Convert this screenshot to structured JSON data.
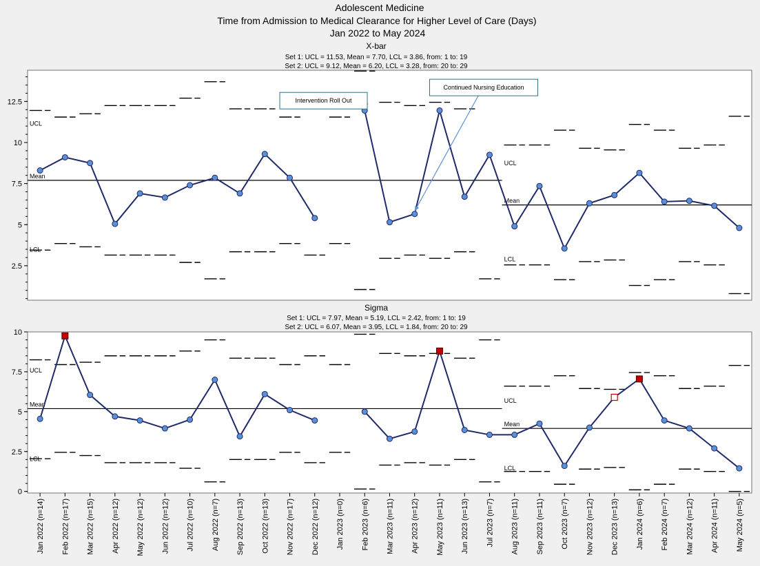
{
  "header": {
    "line1": "Adolescent Medicine",
    "line2": "Time from Admission to Medical Clearance for Higher Level of Care (Days)",
    "line3": "Jan 2022 to May 2024"
  },
  "colors": {
    "line": "#1f2a6b",
    "point": "#5b8fd6",
    "signal": "#c00000",
    "plot_bg": "#ffffff",
    "page_bg": "#f0f0f0",
    "annotation_border": "#2e6f86"
  },
  "chart_data": [
    {
      "type": "line",
      "title": "X-bar",
      "set_info": [
        "Set 1: UCL = 11.53, Mean = 7.70, LCL = 3.86, from: 1 to: 19",
        "Set 2: UCL = 9.12, Mean = 6.20, LCL = 3.28, from: 20 to: 29"
      ],
      "categories": [
        "Jan 2022 (n=14)",
        "Feb 2022 (n=17)",
        "Mar 2022 (n=15)",
        "Apr 2022 (n=12)",
        "May 2022 (n=12)",
        "Jun 2022 (n=12)",
        "Jul 2022 (n=10)",
        "Aug 2022 (n=7)",
        "Sep 2022 (n=13)",
        "Oct 2022 (n=13)",
        "Nov 2022 (n=17)",
        "Dec 2022 (n=12)",
        "Jan 2023 (n=0)",
        "Feb 2023 (n=6)",
        "Mar 2023 (n=11)",
        "Apr 2023 (n=12)",
        "May 2023 (n=11)",
        "Jun 2023 (n=13)",
        "Jul 2023 (n=7)",
        "Aug 2023 (n=11)",
        "Sep 2023 (n=11)",
        "Oct 2023 (n=7)",
        "Nov 2023 (n=12)",
        "Dec 2023 (n=13)",
        "Jan 2024 (n=6)",
        "Feb 2024 (n=7)",
        "Mar 2024 (n=12)",
        "Apr 2024 (n=11)",
        "May 2024 (n=5)"
      ],
      "values": [
        8.3,
        9.1,
        8.75,
        5.05,
        6.9,
        6.65,
        7.4,
        7.85,
        6.9,
        9.3,
        7.85,
        5.4,
        null,
        11.95,
        5.15,
        5.65,
        11.95,
        6.7,
        9.25,
        4.9,
        7.35,
        3.55,
        6.3,
        6.8,
        8.15,
        6.4,
        6.45,
        6.15,
        4.8
      ],
      "ucl": [
        11.95,
        11.55,
        11.75,
        12.25,
        12.25,
        12.25,
        12.7,
        13.7,
        12.05,
        12.05,
        11.55,
        12.25,
        11.55,
        14.35,
        12.45,
        12.25,
        12.45,
        12.05,
        13.7,
        9.85,
        9.85,
        10.75,
        9.65,
        9.55,
        11.1,
        10.75,
        9.65,
        9.85,
        11.6
      ],
      "lcl": [
        3.45,
        3.85,
        3.65,
        3.15,
        3.15,
        3.15,
        2.7,
        1.7,
        3.35,
        3.35,
        3.85,
        3.15,
        3.85,
        1.05,
        2.95,
        3.15,
        2.95,
        3.35,
        1.7,
        2.55,
        2.55,
        1.65,
        2.75,
        2.85,
        1.3,
        1.65,
        2.75,
        2.55,
        0.8
      ],
      "mean_sets": [
        {
          "from": 1,
          "to": 19,
          "value": 7.7
        },
        {
          "from": 20,
          "to": 29,
          "value": 6.2
        }
      ],
      "signals": [],
      "open_signals": [],
      "ylim": [
        0.4,
        14.4
      ],
      "yticks": [
        2.5,
        5,
        7.5,
        10,
        12.5
      ],
      "ytick_labels": [
        "2.5",
        "5",
        "7.5",
        "10",
        "12.5"
      ],
      "limit_labels": [
        {
          "text": "UCL",
          "index": 1,
          "value": 11.53
        },
        {
          "text": "Mean",
          "index": 1,
          "value": 7.7
        },
        {
          "text": "LCL",
          "index": 1,
          "value": 3.86
        },
        {
          "text": "UCL",
          "index": 20,
          "value": 9.12
        },
        {
          "text": "Mean",
          "index": 20,
          "value": 6.2
        },
        {
          "text": "LCL",
          "index": 20,
          "value": 3.28
        }
      ],
      "annotations": [
        {
          "text": "Intervention Roll Out",
          "box_index": 10.6,
          "box_value": 13.05,
          "target_index": 14,
          "target_value": 11.95
        },
        {
          "text": "Continued Nursing Education",
          "box_index": 16.6,
          "box_value": 13.85,
          "target_index": 16,
          "target_value": 5.65
        }
      ]
    },
    {
      "type": "line",
      "title": "Sigma",
      "set_info": [
        "Set 1: UCL = 7.97, Mean = 5.19, LCL = 2.42, from: 1 to: 19",
        "Set 2: UCL = 6.07, Mean = 3.95, LCL = 1.84, from: 20 to: 29"
      ],
      "categories": [
        "Jan 2022 (n=14)",
        "Feb 2022 (n=17)",
        "Mar 2022 (n=15)",
        "Apr 2022 (n=12)",
        "May 2022 (n=12)",
        "Jun 2022 (n=12)",
        "Jul 2022 (n=10)",
        "Aug 2022 (n=7)",
        "Sep 2022 (n=13)",
        "Oct 2022 (n=13)",
        "Nov 2022 (n=17)",
        "Dec 2022 (n=12)",
        "Jan 2023 (n=0)",
        "Feb 2023 (n=6)",
        "Mar 2023 (n=11)",
        "Apr 2023 (n=12)",
        "May 2023 (n=11)",
        "Jun 2023 (n=13)",
        "Jul 2023 (n=7)",
        "Aug 2023 (n=11)",
        "Sep 2023 (n=11)",
        "Oct 2023 (n=7)",
        "Nov 2023 (n=12)",
        "Dec 2023 (n=13)",
        "Jan 2024 (n=6)",
        "Feb 2024 (n=7)",
        "Mar 2024 (n=12)",
        "Apr 2024 (n=11)",
        "May 2024 (n=5)"
      ],
      "values": [
        4.55,
        9.75,
        6.05,
        4.7,
        4.45,
        3.95,
        4.5,
        7.0,
        3.45,
        6.1,
        5.1,
        4.45,
        null,
        5.0,
        3.3,
        3.75,
        8.8,
        3.85,
        3.55,
        3.55,
        4.25,
        1.6,
        4.0,
        5.9,
        7.05,
        4.45,
        3.95,
        2.7,
        1.45
      ],
      "ucl": [
        8.25,
        7.95,
        8.1,
        8.5,
        8.5,
        8.5,
        8.8,
        9.5,
        8.35,
        8.35,
        7.95,
        8.5,
        7.95,
        9.85,
        8.65,
        8.5,
        8.65,
        8.35,
        9.5,
        6.6,
        6.6,
        7.25,
        6.45,
        6.4,
        7.45,
        7.25,
        6.45,
        6.6,
        7.9
      ],
      "lcl": [
        2.05,
        2.45,
        2.25,
        1.8,
        1.8,
        1.8,
        1.45,
        0.6,
        2.0,
        2.0,
        2.45,
        1.8,
        2.45,
        0.15,
        1.65,
        1.8,
        1.65,
        2.0,
        0.6,
        1.25,
        1.25,
        0.45,
        1.4,
        1.5,
        0.1,
        0.45,
        1.4,
        1.25,
        0.0
      ],
      "mean_sets": [
        {
          "from": 1,
          "to": 19,
          "value": 5.19
        },
        {
          "from": 20,
          "to": 29,
          "value": 3.95
        }
      ],
      "signals": [
        2,
        17,
        25
      ],
      "open_signals": [
        24
      ],
      "ylim": [
        -0.1,
        10.0
      ],
      "yticks": [
        0,
        2.5,
        5,
        7.5,
        10
      ],
      "ytick_labels": [
        "0",
        "2.5",
        "5",
        "7.5",
        "10"
      ],
      "limit_labels": [
        {
          "text": "UCL",
          "index": 1,
          "value": 7.97
        },
        {
          "text": "Mean",
          "index": 1,
          "value": 5.19
        },
        {
          "text": "LCL",
          "index": 1,
          "value": 2.42
        },
        {
          "text": "UCL",
          "index": 20,
          "value": 6.07
        },
        {
          "text": "Mean",
          "index": 20,
          "value": 3.95
        },
        {
          "text": "LCL",
          "index": 20,
          "value": 1.84
        }
      ],
      "annotations": []
    }
  ]
}
